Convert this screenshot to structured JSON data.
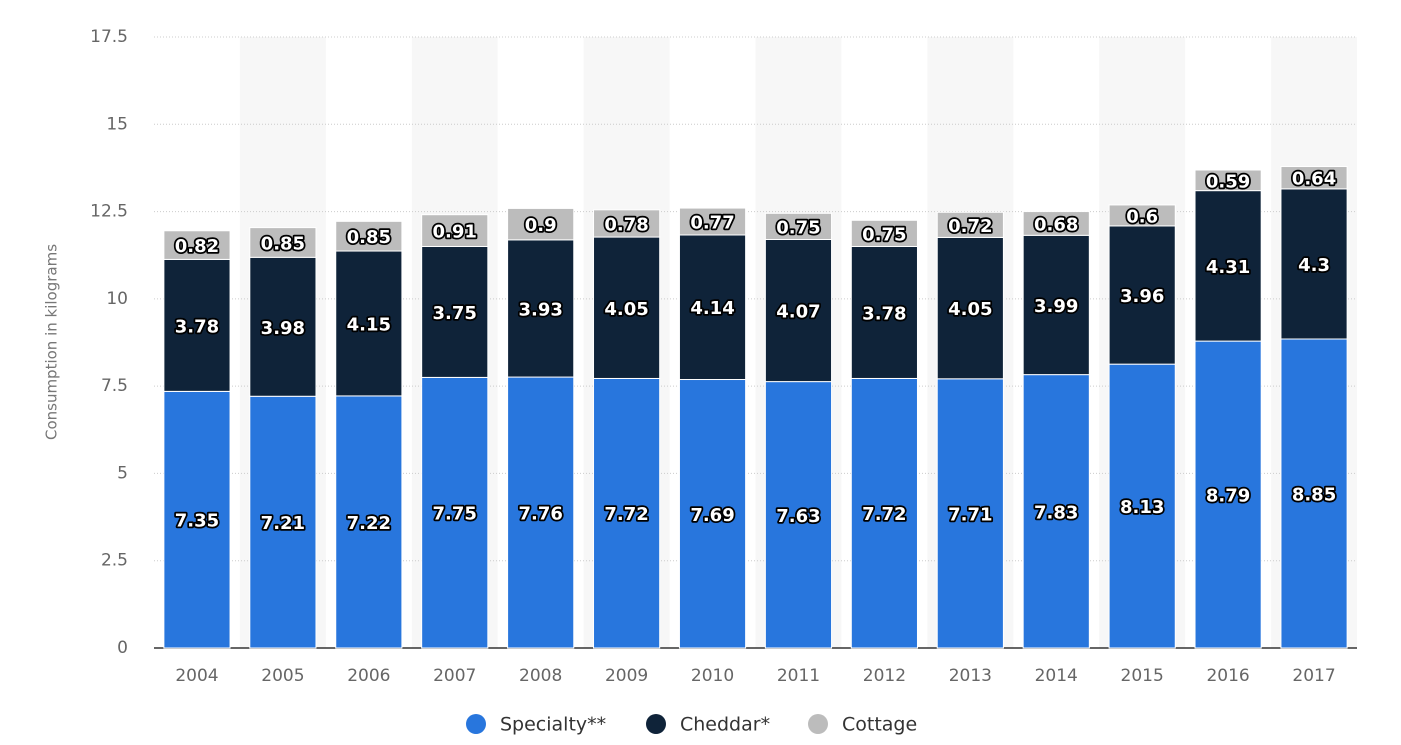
{
  "chart_data": {
    "type": "stacked_bar",
    "y_label": "Consumption in kilograms",
    "categories": [
      "2004",
      "2005",
      "2006",
      "2007",
      "2008",
      "2009",
      "2010",
      "2011",
      "2012",
      "2013",
      "2014",
      "2015",
      "2016",
      "2017"
    ],
    "series": [
      {
        "name": "Specialty**",
        "color": "#2876dd",
        "values": [
          7.35,
          7.21,
          7.22,
          7.75,
          7.76,
          7.72,
          7.69,
          7.63,
          7.72,
          7.71,
          7.83,
          8.13,
          8.79,
          8.85
        ]
      },
      {
        "name": "Cheddar*",
        "color": "#0f2339",
        "values": [
          3.78,
          3.98,
          4.15,
          3.75,
          3.93,
          4.05,
          4.14,
          4.07,
          3.78,
          4.05,
          3.99,
          3.96,
          4.31,
          4.3
        ]
      },
      {
        "name": "Cottage",
        "color": "#bcbcbc",
        "values": [
          0.82,
          0.85,
          0.85,
          0.91,
          0.9,
          0.78,
          0.77,
          0.75,
          0.75,
          0.72,
          0.68,
          0.6,
          0.59,
          0.64
        ]
      }
    ],
    "ylim": [
      0,
      17.5
    ],
    "yticks": [
      0,
      2.5,
      5,
      7.5,
      10,
      12.5,
      15,
      17.5
    ],
    "grid": true
  }
}
